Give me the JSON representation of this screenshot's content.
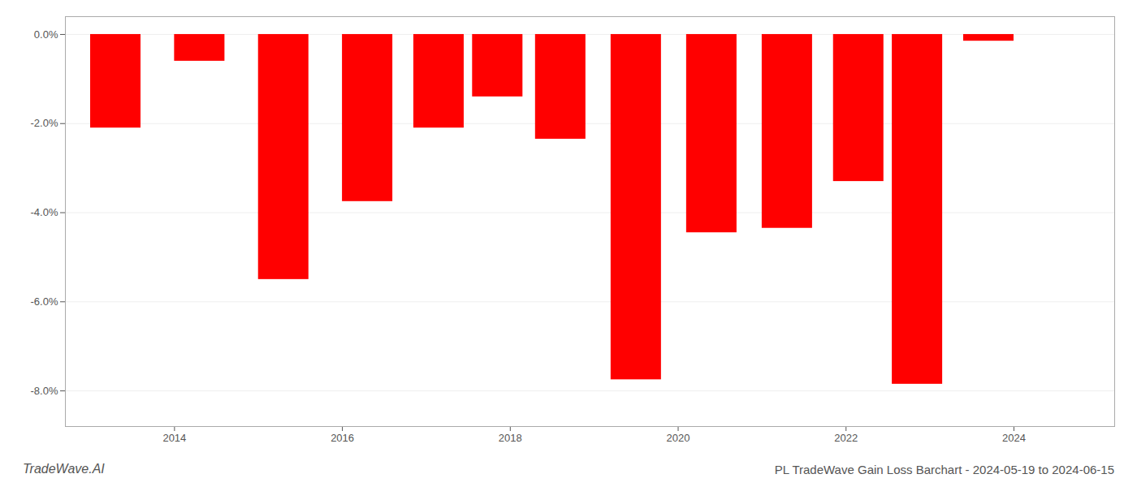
{
  "chart_data": {
    "type": "bar",
    "title": "PL TradeWave Gain Loss Barchart - 2024-05-19 to 2024-06-15",
    "annotations": [
      "TradeWave.AI"
    ],
    "x": [
      2013.3,
      2014.3,
      2015.3,
      2016.3,
      2017.15,
      2017.85,
      2018.6,
      2019.5,
      2020.4,
      2021.3,
      2022.15,
      2022.85,
      2023.7
    ],
    "values": [
      -2.1,
      -0.6,
      -5.5,
      -3.75,
      -2.1,
      -1.4,
      -2.35,
      -7.75,
      -4.45,
      -4.35,
      -3.3,
      -7.85,
      -0.15
    ],
    "color": "#ff0000",
    "xlim": [
      2012.7,
      2025.2
    ],
    "xticks": [
      2014,
      2016,
      2018,
      2020,
      2022,
      2024
    ],
    "ylim": [
      -8.8,
      0.4
    ],
    "yticks": [
      {
        "value": 0.0,
        "label": "0.0%"
      },
      {
        "value": -2.0,
        "label": "-2.0%"
      },
      {
        "value": -4.0,
        "label": "-4.0%"
      },
      {
        "value": -6.0,
        "label": "-6.0%"
      },
      {
        "value": -8.0,
        "label": "-8.0%"
      }
    ],
    "grid": "y"
  }
}
